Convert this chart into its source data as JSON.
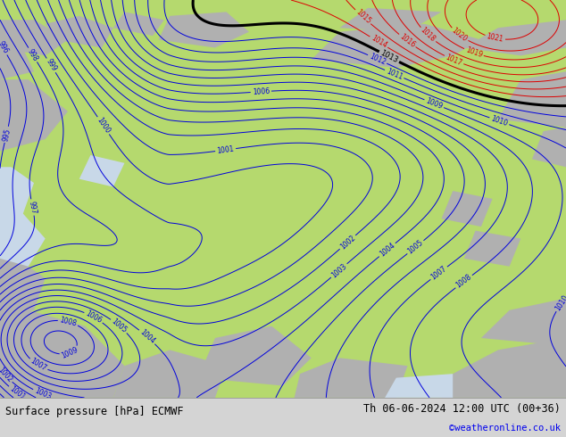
{
  "title_left": "Surface pressure [hPa] ECMWF",
  "title_right": "Th 06-06-2024 12:00 UTC (00+36)",
  "title_right2": "©weatheronline.co.uk",
  "bg_color": "#b5d96e",
  "footer_bg": "#d4d4d4",
  "blue_line_color": "#0000dd",
  "red_line_color": "#dd0000",
  "black_line_color": "#000000",
  "label_blue": "#0000dd",
  "label_red": "#dd0000",
  "label_black": "#000000",
  "title_color": "#000000",
  "credit_color": "#0000ee",
  "figwidth": 6.34,
  "figheight": 4.9,
  "gray_color": "#b0b0b0",
  "water_color": "#c8d8e8"
}
